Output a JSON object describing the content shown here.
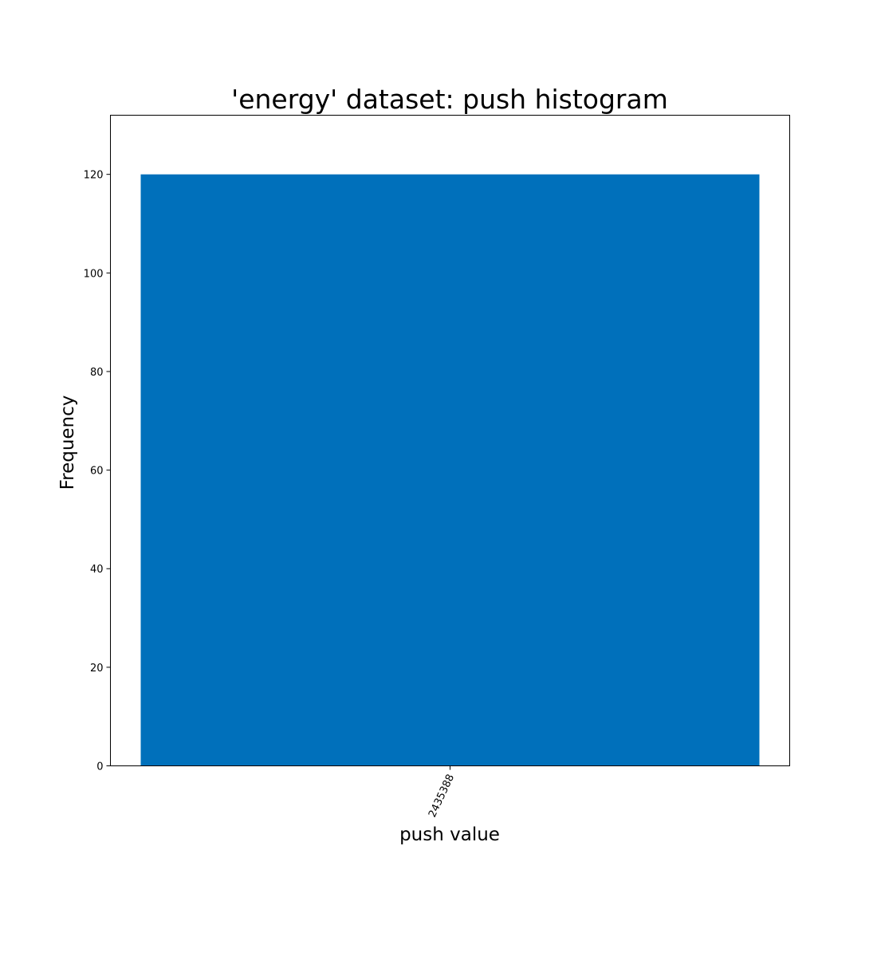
{
  "chart_data": {
    "type": "bar",
    "title": "'energy' dataset: push histogram",
    "xlabel": "push value",
    "ylabel": "Frequency",
    "categories": [
      "2435388"
    ],
    "values": [
      120
    ],
    "ylim": [
      0,
      132
    ],
    "yticks": [
      0,
      20,
      40,
      60,
      80,
      100,
      120
    ],
    "grid": false,
    "legend": "none",
    "bar_color": "#0070bb",
    "axis_color": "#000000"
  }
}
